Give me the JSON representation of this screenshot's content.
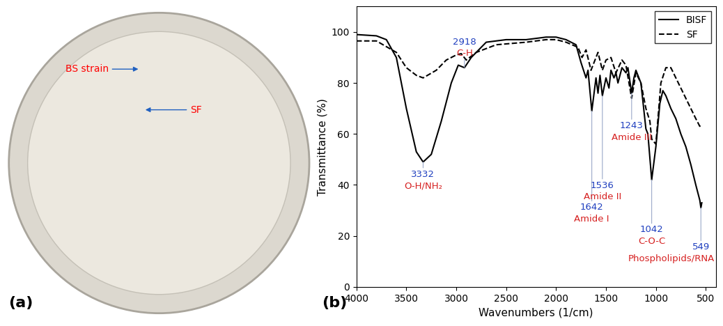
{
  "image_panel": {
    "label": "(a)",
    "annotations": [
      "BS strain",
      "SF"
    ]
  },
  "chart_data": {
    "type": "line",
    "panel_label": "(b)",
    "x_label": "Wavenumbers (1/cm)",
    "y_label": "Transmittance (%)",
    "xlim": [
      4000,
      400
    ],
    "xticks": [
      4000,
      3500,
      3000,
      2500,
      2000,
      1500,
      1000,
      500
    ],
    "ylim": [
      0,
      110
    ],
    "yticks": [
      0,
      20,
      40,
      60,
      80,
      100
    ],
    "grid": false,
    "legend": "upper right",
    "series": [
      {
        "name": "BISF",
        "color": "#000000",
        "line_style": "solid",
        "x": [
          4000,
          3800,
          3700,
          3600,
          3500,
          3400,
          3332,
          3250,
          3150,
          3050,
          2980,
          2918,
          2850,
          2700,
          2500,
          2300,
          2100,
          2000,
          1900,
          1800,
          1750,
          1700,
          1680,
          1642,
          1600,
          1580,
          1560,
          1536,
          1500,
          1470,
          1450,
          1420,
          1400,
          1380,
          1340,
          1300,
          1280,
          1243,
          1220,
          1200,
          1150,
          1100,
          1080,
          1042,
          1000,
          960,
          930,
          900,
          850,
          800,
          750,
          700,
          650,
          600,
          560,
          549,
          540
        ],
        "values": [
          99,
          98.5,
          97,
          90,
          70,
          53,
          49,
          52,
          65,
          80,
          87,
          86,
          90,
          96,
          97,
          97,
          98,
          98,
          97,
          95,
          88,
          82,
          85,
          69,
          82,
          76,
          83,
          75,
          82,
          78,
          85,
          82,
          84,
          80,
          86,
          84,
          86,
          76,
          82,
          85,
          80,
          62,
          60,
          42,
          55,
          72,
          77,
          75,
          70,
          66,
          60,
          55,
          48,
          40,
          34,
          31,
          33
        ]
      },
      {
        "name": "SF",
        "color": "#000000",
        "line_style": "dashed",
        "x": [
          4000,
          3800,
          3600,
          3500,
          3400,
          3332,
          3200,
          3100,
          3000,
          2950,
          2900,
          2800,
          2600,
          2300,
          2100,
          2000,
          1900,
          1780,
          1740,
          1700,
          1650,
          1620,
          1580,
          1536,
          1500,
          1450,
          1400,
          1340,
          1300,
          1243,
          1200,
          1150,
          1100,
          1060,
          1042,
          1000,
          950,
          900,
          850,
          800,
          750,
          700,
          650,
          600,
          560,
          549
        ],
        "values": [
          96.5,
          96.5,
          92,
          86,
          83,
          82,
          85,
          89,
          91,
          91.5,
          89,
          92,
          95,
          96,
          97,
          97,
          96,
          94,
          90,
          93,
          85,
          88,
          92,
          85,
          89,
          90,
          84,
          89,
          87,
          74,
          84,
          80,
          70,
          65,
          58,
          56,
          80,
          86,
          86,
          82,
          78,
          74,
          70,
          66,
          63,
          64
        ]
      }
    ],
    "annotations": [
      {
        "x": 3332,
        "label": "O-H/NH₂"
      },
      {
        "x": 2918,
        "label": "C-H"
      },
      {
        "x": 1642,
        "label": "Amide I"
      },
      {
        "x": 1536,
        "label": "Amide II"
      },
      {
        "x": 1243,
        "label": "Amide III"
      },
      {
        "x": 1042,
        "label": "C-O-C"
      },
      {
        "x": 549,
        "label": "Phospholipids/RNA"
      }
    ]
  }
}
